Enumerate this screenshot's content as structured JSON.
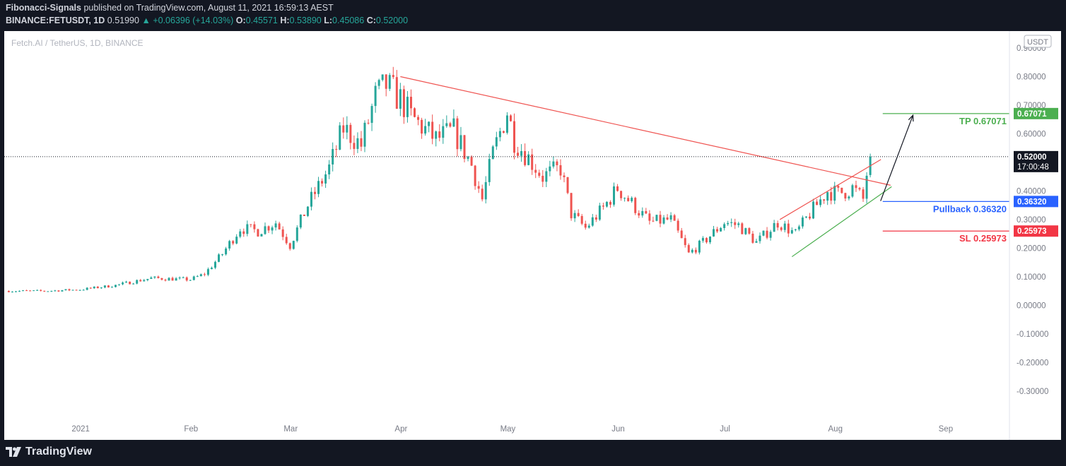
{
  "header": {
    "author": "Fibonacci-Signals",
    "published_text": "published on TradingView.com, August 11, 2021 16:59:13 AEST",
    "symbol": "BINANCE:FETUSDT, 1D",
    "last": "0.51990",
    "change": "+0.06396 (+14.03%)",
    "o_label": "O:",
    "o": "0.45571",
    "h_label": "H:",
    "h": "0.53890",
    "l_label": "L:",
    "l": "0.45086",
    "c_label": "C:",
    "c": "0.52000"
  },
  "chart": {
    "legend_title": "Fetch.AI / TetherUS, 1D, BINANCE",
    "currency_badge": "USDT",
    "countdown": "17:00:48"
  },
  "footer": {
    "brand": "TradingView"
  },
  "colors": {
    "up": "#26a69a",
    "down": "#ef5350",
    "tp": "#4caf50",
    "pullback": "#2962ff",
    "sl": "#f23645",
    "price_label": "#131722"
  },
  "chart_data": {
    "type": "candlestick",
    "x_ticks": [
      {
        "label": "2021",
        "x": 20.2
      },
      {
        "label": "Feb",
        "x": 51.2
      },
      {
        "label": "Mar",
        "x": 79.2
      },
      {
        "label": "Apr",
        "x": 110.2
      },
      {
        "label": "May",
        "x": 140.2
      },
      {
        "label": "Jun",
        "x": 171.2
      },
      {
        "label": "Jul",
        "x": 201.2
      },
      {
        "label": "Aug",
        "x": 232.2
      },
      {
        "label": "Sep",
        "x": 263.2
      }
    ],
    "y_ticks": [
      "0.90000",
      "0.80000",
      "0.70000",
      "0.60000",
      "0.50000",
      "0.40000",
      "0.30000",
      "0.20000",
      "0.10000",
      "0.00000",
      "-0.10000",
      "-0.20000",
      "-0.30000"
    ],
    "ylim": [
      -0.33,
      0.905
    ],
    "current_price": 0.52,
    "current_price_label": "0.52000",
    "levels": [
      {
        "name": "TP",
        "value": 0.67071,
        "text": "TP 0.67071",
        "axis_label": "0.67071"
      },
      {
        "name": "Pullback",
        "value": 0.3632,
        "text": "Pullback 0.36320",
        "axis_label": "0.36320"
      },
      {
        "name": "SL",
        "value": 0.25973,
        "text": "SL 0.25973",
        "axis_label": "0.25973"
      }
    ],
    "trendlines": [
      {
        "name": "descending resistance",
        "x1": 110.0,
        "y1": 0.8,
        "x2": 247.7,
        "y2": 0.42
      },
      {
        "name": "rising upper",
        "x1": 216.6,
        "y1": 0.3,
        "x2": 245.0,
        "y2": 0.51
      },
      {
        "name": "rising support",
        "x1": 220.0,
        "y1": 0.17,
        "x2": 248.0,
        "y2": 0.415
      },
      {
        "name": "projection arrow",
        "x1": 244.9,
        "y1": 0.365,
        "x2": 254.0,
        "y2": 0.665
      }
    ],
    "closes": [
      [
        0,
        0.05
      ],
      [
        10,
        0.05
      ],
      [
        20,
        0.055
      ],
      [
        30,
        0.07
      ],
      [
        40,
        0.095
      ],
      [
        51,
        0.09
      ],
      [
        55,
        0.11
      ],
      [
        60,
        0.18
      ],
      [
        65,
        0.27
      ],
      [
        70,
        0.26
      ],
      [
        75,
        0.29
      ],
      [
        79,
        0.21
      ],
      [
        84,
        0.35
      ],
      [
        90,
        0.48
      ],
      [
        94,
        0.62
      ],
      [
        99,
        0.56
      ],
      [
        103,
        0.73
      ],
      [
        106,
        0.77
      ],
      [
        110,
        0.72
      ],
      [
        113,
        0.66
      ],
      [
        120,
        0.58
      ],
      [
        125,
        0.61
      ],
      [
        130,
        0.49
      ],
      [
        133,
        0.37
      ],
      [
        136,
        0.53
      ],
      [
        140,
        0.68
      ],
      [
        142,
        0.58
      ],
      [
        147,
        0.5
      ],
      [
        150,
        0.45
      ],
      [
        155,
        0.48
      ],
      [
        158,
        0.32
      ],
      [
        162,
        0.27
      ],
      [
        167,
        0.34
      ],
      [
        171,
        0.41
      ],
      [
        174,
        0.37
      ],
      [
        180,
        0.29
      ],
      [
        186,
        0.3
      ],
      [
        191,
        0.18
      ],
      [
        195,
        0.22
      ],
      [
        201,
        0.29
      ],
      [
        205,
        0.28
      ],
      [
        210,
        0.22
      ],
      [
        216,
        0.29
      ],
      [
        221,
        0.25
      ],
      [
        225,
        0.32
      ],
      [
        230,
        0.4
      ],
      [
        233,
        0.39
      ],
      [
        237,
        0.41
      ],
      [
        240,
        0.37
      ],
      [
        241,
        0.46
      ],
      [
        242,
        0.52
      ]
    ]
  }
}
